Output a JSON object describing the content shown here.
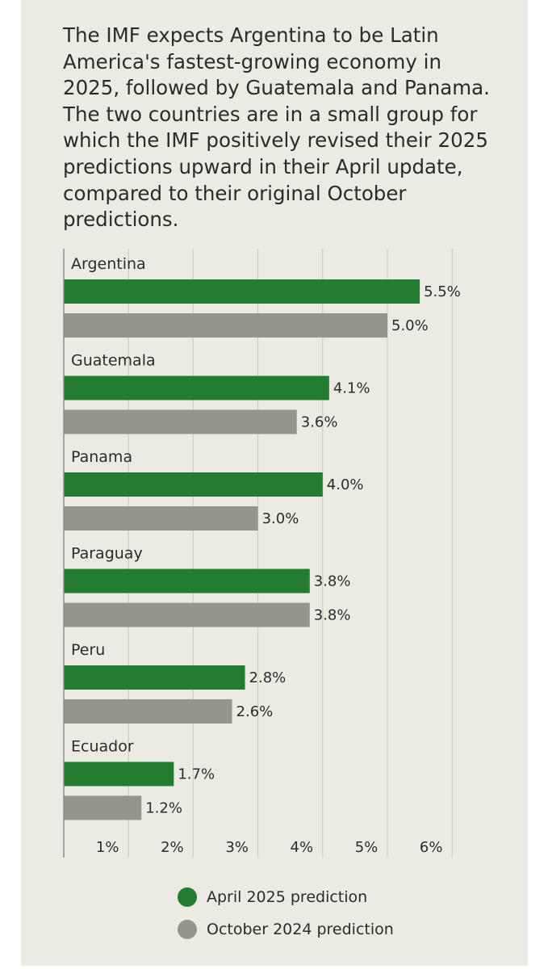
{
  "headline": "The IMF expects Argentina to be Latin America's fastest-growing economy in 2025, followed by Guatemala and Panama. The two countries are in a small group for which the IMF positively revised their 2025 predictions upward in their April update, compared to their original October predictions.",
  "colors": {
    "april": "#227d31",
    "october": "#96958b",
    "grid": "#cfcdc4",
    "axis": "#888888",
    "background": "#ecebe3"
  },
  "chart_data": {
    "type": "bar",
    "orientation": "horizontal",
    "categories": [
      "Argentina",
      "Guatemala",
      "Panama",
      "Paraguay",
      "Peru",
      "Ecuador"
    ],
    "series": [
      {
        "name": "April 2025 prediction",
        "values": [
          5.5,
          4.1,
          4.0,
          3.8,
          2.8,
          1.7
        ],
        "labels": [
          "5.5%",
          "4.1%",
          "4.0%",
          "3.8%",
          "2.8%",
          "1.7%"
        ]
      },
      {
        "name": "October 2024 prediction",
        "values": [
          5.0,
          3.6,
          3.0,
          3.8,
          2.6,
          1.2
        ],
        "labels": [
          "5.0%",
          "3.6%",
          "3.0%",
          "3.8%",
          "2.6%",
          "1.2%"
        ]
      }
    ],
    "xticks": [
      1,
      2,
      3,
      4,
      5,
      6
    ],
    "xtick_labels": [
      "1%",
      "2%",
      "3%",
      "4%",
      "5%",
      "6%"
    ],
    "xlim": [
      0,
      6.5
    ],
    "grid": true,
    "legend_position": "bottom"
  }
}
